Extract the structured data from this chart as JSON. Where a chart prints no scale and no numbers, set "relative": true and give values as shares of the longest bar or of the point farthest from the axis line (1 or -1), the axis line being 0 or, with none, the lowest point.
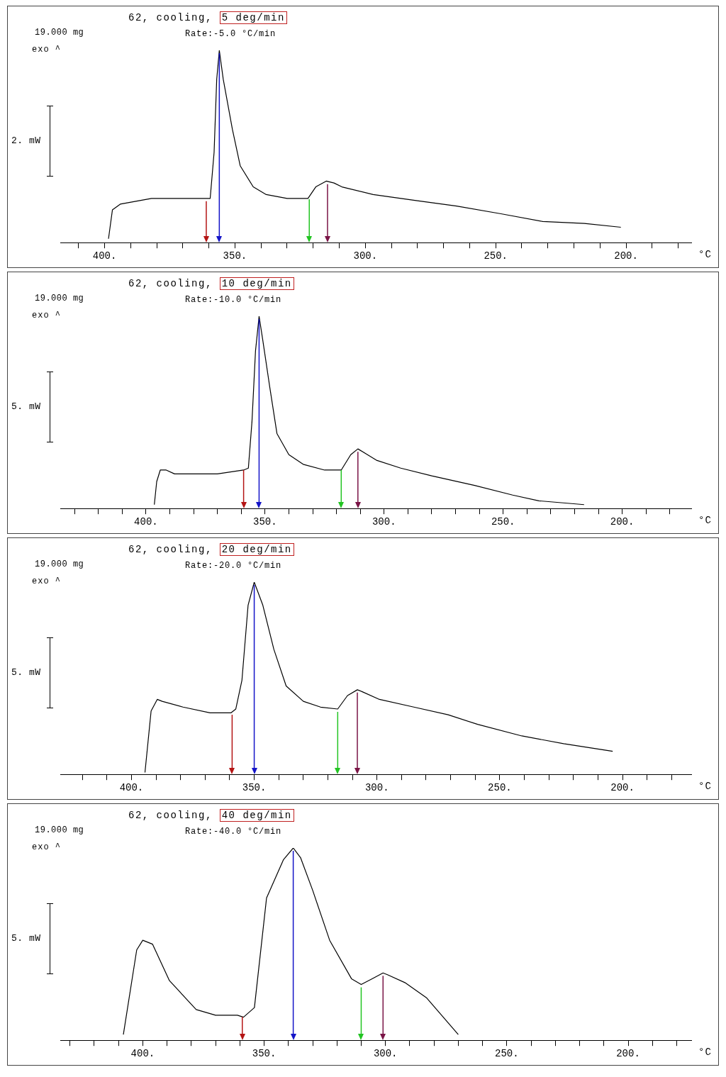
{
  "chart_data": [
    {
      "type": "line",
      "title": "62, cooling, 5 deg/min",
      "subtitle": "Rate:-5.0 °C/min",
      "xlabel": "°C",
      "annotations": [
        "19.000 mg",
        "exo ^",
        "2. mW"
      ],
      "relative": true,
      "legend": false,
      "grid": false,
      "marker": "none",
      "x": [
        202,
        216,
        232,
        248,
        265,
        281,
        297,
        309,
        312,
        315,
        319,
        322,
        330,
        338,
        343,
        348,
        351,
        354.5,
        356,
        357,
        358,
        359.5,
        361,
        371,
        382,
        394,
        397,
        398.5
      ],
      "series": [
        {
          "color": "#000000",
          "values": [
            0.08,
            0.1,
            0.11,
            0.15,
            0.19,
            0.22,
            0.25,
            0.29,
            0.31,
            0.32,
            0.29,
            0.23,
            0.23,
            0.25,
            0.29,
            0.4,
            0.59,
            0.85,
            1,
            0.85,
            0.47,
            0.23,
            0.23,
            0.23,
            0.23,
            0.2,
            0.17,
            0.02
          ]
        }
      ],
      "xlim": [
        417,
        175
      ],
      "xticks": [
        {
          "value": 180,
          "label": null
        },
        {
          "value": 190,
          "label": null
        },
        {
          "value": 200,
          "label": "200."
        },
        {
          "value": 210,
          "label": null
        },
        {
          "value": 220,
          "label": null
        },
        {
          "value": 230,
          "label": null
        },
        {
          "value": 240,
          "label": null
        },
        {
          "value": 250,
          "label": "250."
        },
        {
          "value": 260,
          "label": null
        },
        {
          "value": 270,
          "label": null
        },
        {
          "value": 280,
          "label": null
        },
        {
          "value": 290,
          "label": null
        },
        {
          "value": 300,
          "label": "300."
        },
        {
          "value": 310,
          "label": null
        },
        {
          "value": 320,
          "label": null
        },
        {
          "value": 330,
          "label": null
        },
        {
          "value": 340,
          "label": null
        },
        {
          "value": 350,
          "label": "350."
        },
        {
          "value": 360,
          "label": null
        },
        {
          "value": 370,
          "label": null
        },
        {
          "value": 380,
          "label": null
        },
        {
          "value": 390,
          "label": null
        },
        {
          "value": 400,
          "label": "400."
        },
        {
          "value": 410,
          "label": null
        }
      ],
      "ref_lines": [
        {
          "axis": "x",
          "value": 314.5,
          "color": "#7a1446"
        },
        {
          "axis": "x",
          "value": 321.5,
          "color": "#22c422"
        },
        {
          "axis": "x",
          "value": 356,
          "color": "#1414c8"
        },
        {
          "axis": "x",
          "value": 361,
          "color": "#b41414"
        }
      ]
    },
    {
      "type": "line",
      "title": "62, cooling, 10 deg/min",
      "subtitle": "Rate:-10.0 °C/min",
      "xlabel": "°C",
      "annotations": [
        "19.000 mg",
        "exo ^",
        "5. mW"
      ],
      "relative": true,
      "legend": false,
      "grid": false,
      "marker": "none",
      "x": [
        216,
        235,
        246,
        262,
        280,
        293,
        303,
        307,
        311,
        314,
        318,
        325,
        334,
        340,
        345,
        348,
        351,
        352.5,
        354,
        355.5,
        357,
        359,
        370,
        388,
        391.5,
        394,
        395.5,
        396.5
      ],
      "series": [
        {
          "color": "#000000",
          "values": [
            0.02,
            0.04,
            0.07,
            0.12,
            0.17,
            0.21,
            0.25,
            0.28,
            0.31,
            0.28,
            0.2,
            0.2,
            0.23,
            0.28,
            0.39,
            0.63,
            0.88,
            1,
            0.82,
            0.45,
            0.21,
            0.2,
            0.18,
            0.18,
            0.2,
            0.2,
            0.14,
            0.02
          ]
        }
      ],
      "xlim": [
        436,
        171
      ],
      "xticks": [
        {
          "value": 180,
          "label": null
        },
        {
          "value": 190,
          "label": null
        },
        {
          "value": 200,
          "label": "200."
        },
        {
          "value": 210,
          "label": null
        },
        {
          "value": 220,
          "label": null
        },
        {
          "value": 230,
          "label": null
        },
        {
          "value": 240,
          "label": null
        },
        {
          "value": 250,
          "label": "250."
        },
        {
          "value": 260,
          "label": null
        },
        {
          "value": 270,
          "label": null
        },
        {
          "value": 280,
          "label": null
        },
        {
          "value": 290,
          "label": null
        },
        {
          "value": 300,
          "label": "300."
        },
        {
          "value": 310,
          "label": null
        },
        {
          "value": 320,
          "label": null
        },
        {
          "value": 330,
          "label": null
        },
        {
          "value": 340,
          "label": null
        },
        {
          "value": 350,
          "label": "350."
        },
        {
          "value": 360,
          "label": null
        },
        {
          "value": 370,
          "label": null
        },
        {
          "value": 380,
          "label": null
        },
        {
          "value": 390,
          "label": null
        },
        {
          "value": 400,
          "label": "400."
        },
        {
          "value": 410,
          "label": null
        },
        {
          "value": 420,
          "label": null
        },
        {
          "value": 430,
          "label": null
        }
      ],
      "ref_lines": [
        {
          "axis": "x",
          "value": 311,
          "color": "#7a1446"
        },
        {
          "axis": "x",
          "value": 318,
          "color": "#22c422"
        },
        {
          "axis": "x",
          "value": 352.5,
          "color": "#1414c8"
        },
        {
          "axis": "x",
          "value": 359,
          "color": "#b41414"
        }
      ]
    },
    {
      "type": "line",
      "title": "62, cooling, 20 deg/min",
      "subtitle": "Rate:-20.0 °C/min",
      "xlabel": "°C",
      "annotations": [
        "19.000 mg",
        "exo ^",
        "5. mW"
      ],
      "relative": true,
      "legend": false,
      "grid": false,
      "marker": "none",
      "x": [
        204,
        224,
        241,
        259,
        271,
        285,
        299,
        306,
        308,
        312,
        316,
        323,
        330,
        337,
        342,
        346.5,
        350,
        352.5,
        355,
        357.5,
        359.5,
        368,
        379,
        387.5,
        389.5,
        392,
        394.5
      ],
      "series": [
        {
          "color": "#000000",
          "values": [
            0.12,
            0.16,
            0.2,
            0.26,
            0.31,
            0.35,
            0.39,
            0.43,
            0.44,
            0.41,
            0.34,
            0.35,
            0.38,
            0.46,
            0.65,
            0.88,
            1,
            0.88,
            0.49,
            0.34,
            0.32,
            0.32,
            0.35,
            0.38,
            0.39,
            0.33,
            0.01
          ]
        }
      ],
      "xlim": [
        429,
        172
      ],
      "xticks": [
        {
          "value": 180,
          "label": null
        },
        {
          "value": 190,
          "label": null
        },
        {
          "value": 200,
          "label": "200."
        },
        {
          "value": 210,
          "label": null
        },
        {
          "value": 220,
          "label": null
        },
        {
          "value": 230,
          "label": null
        },
        {
          "value": 240,
          "label": null
        },
        {
          "value": 250,
          "label": "250."
        },
        {
          "value": 260,
          "label": null
        },
        {
          "value": 270,
          "label": null
        },
        {
          "value": 280,
          "label": null
        },
        {
          "value": 290,
          "label": null
        },
        {
          "value": 300,
          "label": "300."
        },
        {
          "value": 310,
          "label": null
        },
        {
          "value": 320,
          "label": null
        },
        {
          "value": 330,
          "label": null
        },
        {
          "value": 340,
          "label": null
        },
        {
          "value": 350,
          "label": "350."
        },
        {
          "value": 360,
          "label": null
        },
        {
          "value": 370,
          "label": null
        },
        {
          "value": 380,
          "label": null
        },
        {
          "value": 390,
          "label": null
        },
        {
          "value": 400,
          "label": "400."
        },
        {
          "value": 410,
          "label": null
        },
        {
          "value": 420,
          "label": null
        }
      ],
      "ref_lines": [
        {
          "axis": "x",
          "value": 308,
          "color": "#7a1446"
        },
        {
          "axis": "x",
          "value": 316,
          "color": "#22c422"
        },
        {
          "axis": "x",
          "value": 350,
          "color": "#1414c8"
        },
        {
          "axis": "x",
          "value": 359,
          "color": "#b41414"
        }
      ]
    },
    {
      "type": "line",
      "title": "62, cooling, 40 deg/min",
      "subtitle": "Rate:-40.0 °C/min",
      "xlabel": "°C",
      "annotations": [
        "19.000 mg",
        "exo ^",
        "5. mW"
      ],
      "relative": true,
      "legend": false,
      "grid": false,
      "marker": "none",
      "x": [
        270,
        283,
        292,
        299,
        301,
        305.5,
        310,
        314,
        323,
        330,
        335,
        338,
        342,
        349,
        354,
        358.5,
        361,
        370,
        378,
        389,
        396,
        400,
        402.5,
        408
      ],
      "series": [
        {
          "color": "#000000",
          "values": [
            0.03,
            0.22,
            0.3,
            0.34,
            0.35,
            0.32,
            0.29,
            0.32,
            0.52,
            0.78,
            0.95,
            1,
            0.94,
            0.74,
            0.17,
            0.12,
            0.13,
            0.13,
            0.16,
            0.31,
            0.5,
            0.52,
            0.47,
            0.03
          ]
        }
      ],
      "xlim": [
        434,
        174
      ],
      "xticks": [
        {
          "value": 180,
          "label": null
        },
        {
          "value": 190,
          "label": null
        },
        {
          "value": 200,
          "label": "200."
        },
        {
          "value": 210,
          "label": null
        },
        {
          "value": 220,
          "label": null
        },
        {
          "value": 230,
          "label": null
        },
        {
          "value": 240,
          "label": null
        },
        {
          "value": 250,
          "label": "250."
        },
        {
          "value": 260,
          "label": null
        },
        {
          "value": 270,
          "label": null
        },
        {
          "value": 280,
          "label": null
        },
        {
          "value": 290,
          "label": null
        },
        {
          "value": 300,
          "label": "300."
        },
        {
          "value": 310,
          "label": null
        },
        {
          "value": 320,
          "label": null
        },
        {
          "value": 330,
          "label": null
        },
        {
          "value": 340,
          "label": null
        },
        {
          "value": 350,
          "label": "350."
        },
        {
          "value": 360,
          "label": null
        },
        {
          "value": 370,
          "label": null
        },
        {
          "value": 380,
          "label": null
        },
        {
          "value": 390,
          "label": null
        },
        {
          "value": 400,
          "label": "400."
        },
        {
          "value": 410,
          "label": null
        },
        {
          "value": 420,
          "label": null
        },
        {
          "value": 430,
          "label": null
        }
      ],
      "ref_lines": [
        {
          "axis": "x",
          "value": 301,
          "color": "#7a1446"
        },
        {
          "axis": "x",
          "value": 310,
          "color": "#22c422"
        },
        {
          "axis": "x",
          "value": 338,
          "color": "#1414c8"
        },
        {
          "axis": "x",
          "value": 359,
          "color": "#b41414"
        }
      ]
    }
  ]
}
